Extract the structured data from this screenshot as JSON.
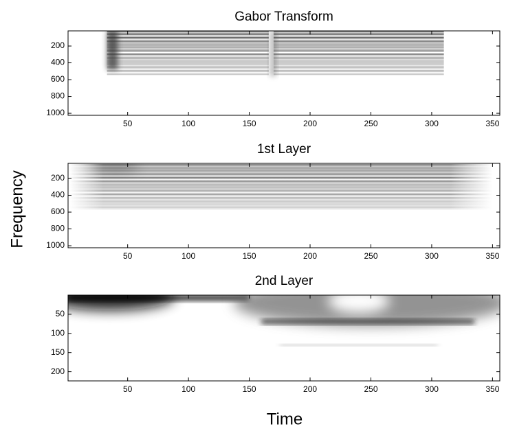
{
  "axis_labels": {
    "y": "Frequency",
    "x": "Time"
  },
  "chart_data": [
    {
      "type": "heatmap",
      "title": "Gabor Transform",
      "xlim": [
        1,
        356
      ],
      "xticks": [
        50,
        100,
        150,
        200,
        250,
        300,
        350
      ],
      "ylim": [
        20,
        1024
      ],
      "y_inverted": true,
      "yticks": [
        200,
        400,
        600,
        800,
        1000
      ]
    },
    {
      "type": "heatmap",
      "title": "1st Layer",
      "xlim": [
        1,
        356
      ],
      "xticks": [
        50,
        100,
        150,
        200,
        250,
        300,
        350
      ],
      "ylim": [
        20,
        1024
      ],
      "y_inverted": true,
      "yticks": [
        200,
        400,
        600,
        800,
        1000
      ]
    },
    {
      "type": "heatmap",
      "title": "2nd Layer",
      "xlim": [
        1,
        356
      ],
      "xticks": [
        50,
        100,
        150,
        200,
        250,
        300,
        350
      ],
      "ylim": [
        0,
        224
      ],
      "y_inverted": true,
      "yticks": [
        50,
        100,
        150,
        200
      ]
    }
  ]
}
